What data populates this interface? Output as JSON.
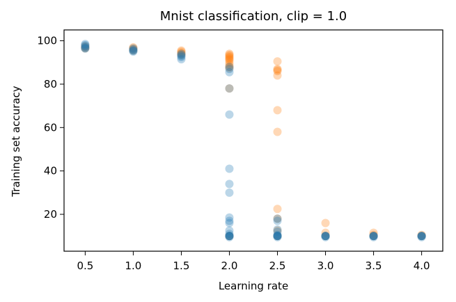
{
  "chart_data": {
    "type": "scatter",
    "title": "Mnist classification, clip = 1.0",
    "xlabel": "Learning rate",
    "ylabel": "Training set accuracy",
    "xlim": [
      0.28,
      4.22
    ],
    "ylim": [
      3,
      105
    ],
    "x_ticks": [
      0.5,
      1.0,
      1.5,
      2.0,
      2.5,
      3.0,
      3.5,
      4.0
    ],
    "x_tick_labels": [
      "0.5",
      "1.0",
      "1.5",
      "2.0",
      "2.5",
      "3.0",
      "3.5",
      "4.0"
    ],
    "y_ticks": [
      20,
      40,
      60,
      80,
      100
    ],
    "y_tick_labels": [
      "20",
      "40",
      "60",
      "80",
      "100"
    ],
    "grid": false,
    "legend": false,
    "series": [
      {
        "color": "#ff7f0e",
        "opacity": 0.3,
        "points": [
          [
            0.5,
            97.5
          ],
          [
            0.5,
            97
          ],
          [
            0.5,
            96.5
          ],
          [
            1.0,
            97
          ],
          [
            1.0,
            96.5
          ],
          [
            1.0,
            96
          ],
          [
            1.0,
            95.5
          ],
          [
            1.5,
            95.5
          ],
          [
            1.5,
            95
          ],
          [
            1.5,
            94.5
          ],
          [
            1.5,
            94
          ],
          [
            1.5,
            93.5
          ],
          [
            2.0,
            94
          ],
          [
            2.0,
            93.5
          ],
          [
            2.0,
            93
          ],
          [
            2.0,
            92.5
          ],
          [
            2.0,
            92
          ],
          [
            2.0,
            91.5
          ],
          [
            2.0,
            91
          ],
          [
            2.0,
            90
          ],
          [
            2.0,
            89
          ],
          [
            2.0,
            88
          ],
          [
            2.0,
            87.5
          ],
          [
            2.0,
            78
          ],
          [
            2.0,
            10
          ],
          [
            2.0,
            10
          ],
          [
            2.5,
            90.5
          ],
          [
            2.5,
            87
          ],
          [
            2.5,
            86.5
          ],
          [
            2.5,
            86
          ],
          [
            2.5,
            84
          ],
          [
            2.5,
            68
          ],
          [
            2.5,
            58
          ],
          [
            2.5,
            22.5
          ],
          [
            2.5,
            18
          ],
          [
            2.5,
            12.5
          ],
          [
            2.5,
            10
          ],
          [
            2.5,
            10
          ],
          [
            3.0,
            16
          ],
          [
            3.0,
            11.5
          ],
          [
            3.0,
            10
          ],
          [
            3.0,
            10
          ],
          [
            3.5,
            11.5
          ],
          [
            3.5,
            10.5
          ],
          [
            3.5,
            10
          ],
          [
            3.5,
            10
          ],
          [
            4.0,
            10.5
          ],
          [
            4.0,
            10
          ],
          [
            4.0,
            10
          ]
        ]
      },
      {
        "color": "#1f77b4",
        "opacity": 0.3,
        "points": [
          [
            0.5,
            98.5
          ],
          [
            0.5,
            98
          ],
          [
            0.5,
            97.5
          ],
          [
            0.5,
            97
          ],
          [
            0.5,
            96.5
          ],
          [
            0.5,
            96.5
          ],
          [
            1.0,
            96.5
          ],
          [
            1.0,
            96
          ],
          [
            1.0,
            95.5
          ],
          [
            1.0,
            95.5
          ],
          [
            1.0,
            95
          ],
          [
            1.5,
            94
          ],
          [
            1.5,
            93.5
          ],
          [
            1.5,
            93
          ],
          [
            1.5,
            92.5
          ],
          [
            1.5,
            91.5
          ],
          [
            2.0,
            88
          ],
          [
            2.0,
            87
          ],
          [
            2.0,
            85.5
          ],
          [
            2.0,
            78
          ],
          [
            2.0,
            66
          ],
          [
            2.0,
            41
          ],
          [
            2.0,
            34
          ],
          [
            2.0,
            30
          ],
          [
            2.0,
            18.5
          ],
          [
            2.0,
            17
          ],
          [
            2.0,
            16
          ],
          [
            2.0,
            12.5
          ],
          [
            2.0,
            11
          ],
          [
            2.0,
            10
          ],
          [
            2.0,
            10
          ],
          [
            2.0,
            10
          ],
          [
            2.0,
            10
          ],
          [
            2.0,
            9.5
          ],
          [
            2.5,
            18
          ],
          [
            2.5,
            17
          ],
          [
            2.5,
            13
          ],
          [
            2.5,
            12
          ],
          [
            2.5,
            10.5
          ],
          [
            2.5,
            10
          ],
          [
            2.5,
            10
          ],
          [
            2.5,
            10
          ],
          [
            2.5,
            10
          ],
          [
            2.5,
            9.5
          ],
          [
            3.0,
            10
          ],
          [
            3.0,
            10
          ],
          [
            3.0,
            10
          ],
          [
            3.0,
            10
          ],
          [
            3.0,
            9.5
          ],
          [
            3.5,
            10
          ],
          [
            3.5,
            10
          ],
          [
            3.5,
            10
          ],
          [
            3.5,
            10
          ],
          [
            3.5,
            9.5
          ],
          [
            4.0,
            10
          ],
          [
            4.0,
            10
          ],
          [
            4.0,
            10
          ],
          [
            4.0,
            10
          ],
          [
            4.0,
            9.5
          ]
        ]
      }
    ]
  }
}
